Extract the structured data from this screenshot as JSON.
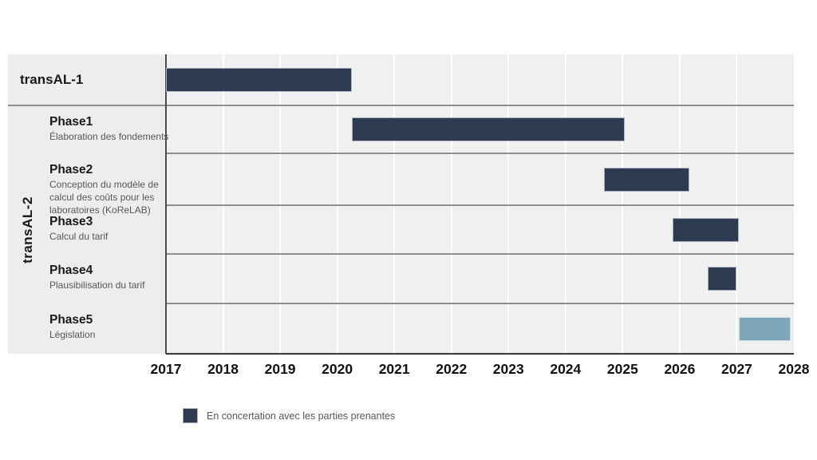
{
  "legend": {
    "label": "En concertation avec les parties prenantes",
    "swatch_color": "#2e3a50"
  },
  "colors": {
    "bar_dark": "#2e3a50",
    "bar_dark_border": "#a9b3c2",
    "bar_light": "#7da6b8",
    "bar_light_border": "#cfdfe6",
    "panel_bg": "#ededed",
    "plot_bg": "#f0f0f0",
    "gridline": "#ffffff",
    "separator": "#8f8f8f",
    "axis": "#4a4a4a",
    "text_dark": "#1a1a1a",
    "text_muted": "#575757"
  },
  "chart_data": {
    "type": "gantt",
    "title": "",
    "x_axis": {
      "years": [
        "2017",
        "2018",
        "2019",
        "2020",
        "2021",
        "2022",
        "2023",
        "2024",
        "2025",
        "2026",
        "2027",
        "2028"
      ],
      "range": [
        2017,
        2028
      ],
      "gridlines": true
    },
    "groups": [
      {
        "id": "transAL-1",
        "label": "transAL-1"
      },
      {
        "id": "transAL-2",
        "label": "transAL-2"
      }
    ],
    "rows": [
      {
        "group": "transAL-1",
        "title": "",
        "desc": "",
        "bar_label": "transAL-1",
        "start": 2017.0,
        "end": 2020.25,
        "color": "dark"
      },
      {
        "group": "transAL-2",
        "title": "Phase1",
        "desc": "Élaboration des fondements",
        "start": 2020.26,
        "end": 2025.03,
        "color": "dark"
      },
      {
        "group": "transAL-2",
        "title": "Phase2",
        "desc": "Conception du modèle de calcul des coûts pour les laboratoires (KoReLAB)",
        "start": 2024.67,
        "end": 2026.17,
        "color": "dark"
      },
      {
        "group": "transAL-2",
        "title": "Phase3",
        "desc": "Calcul du tarif",
        "start": 2025.88,
        "end": 2027.03,
        "color": "dark"
      },
      {
        "group": "transAL-2",
        "title": "Phase4",
        "desc": "Plausibilisation du tarif",
        "start": 2026.49,
        "end": 2026.99,
        "color": "dark"
      },
      {
        "group": "transAL-2",
        "title": "Phase5",
        "desc": "Législation",
        "start": 2027.04,
        "end": 2027.94,
        "color": "light"
      }
    ],
    "legend_entries": [
      {
        "label": "En concertation avec les parties prenantes",
        "color": "#2e3a50"
      }
    ]
  }
}
